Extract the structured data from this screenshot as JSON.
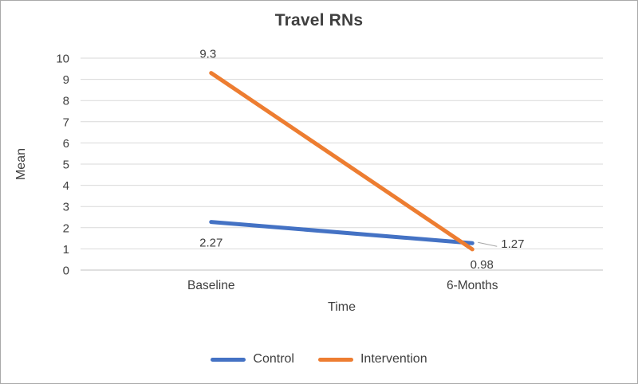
{
  "chart_data": {
    "type": "line",
    "title": "Travel RNs",
    "xlabel": "Time",
    "ylabel": "Mean",
    "categories": [
      "Baseline",
      "6-Months"
    ],
    "series": [
      {
        "name": "Control",
        "color": "#4472C4",
        "values": [
          2.27,
          1.27
        ],
        "point_labels": [
          "2.27",
          "1.27"
        ]
      },
      {
        "name": "Intervention",
        "color": "#ED7D31",
        "values": [
          9.3,
          0.98
        ],
        "point_labels": [
          "9.3",
          "0.98"
        ]
      }
    ],
    "ylim": [
      0,
      10
    ],
    "yticks": [
      0,
      1,
      2,
      3,
      4,
      5,
      6,
      7,
      8,
      9,
      10
    ],
    "grid": true,
    "legend_position": "bottom"
  },
  "colors": {
    "grid": "#d9d9d9",
    "axis": "#bfbfbf",
    "text": "#3f3f3f",
    "leader": "#a6a6a6",
    "frame_border": "#a9a9a9"
  }
}
